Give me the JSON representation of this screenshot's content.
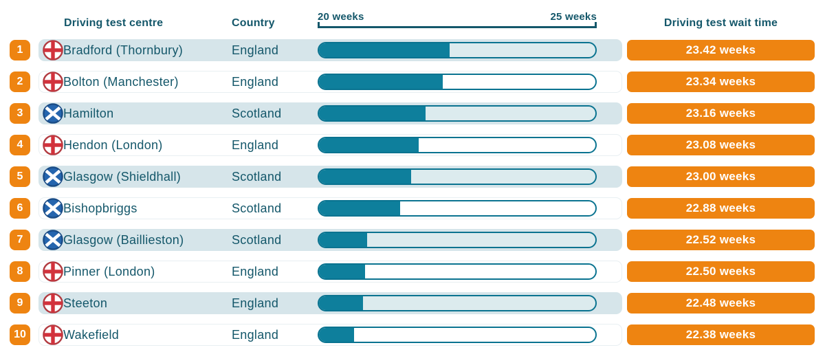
{
  "headers": {
    "centre": "Driving test centre",
    "country": "Country",
    "wait_time": "Driving test wait time"
  },
  "axis": {
    "min_label": "20 weeks",
    "max_label": "25 weeks"
  },
  "colors": {
    "accent_orange": "#ee8411",
    "bar_teal": "#0e7f9c",
    "bar_border_teal": "#0a7390",
    "row_highlight": "#d6e5ea",
    "track_light": "#dcebee",
    "text_dark_teal": "#14576a",
    "england_red": "#d2323c",
    "scotland_blue": "#2565ae"
  },
  "rows": [
    {
      "rank": "1",
      "flag": "england",
      "centre": "Bradford (Thornbury)",
      "country": "England",
      "wait_weeks": 23.42,
      "wait_label": "23.42 weeks"
    },
    {
      "rank": "2",
      "flag": "england",
      "centre": "Bolton (Manchester)",
      "country": "England",
      "wait_weeks": 23.34,
      "wait_label": "23.34 weeks"
    },
    {
      "rank": "3",
      "flag": "scotland",
      "centre": "Hamilton",
      "country": "Scotland",
      "wait_weeks": 23.16,
      "wait_label": "23.16 weeks"
    },
    {
      "rank": "4",
      "flag": "england",
      "centre": "Hendon (London)",
      "country": "England",
      "wait_weeks": 23.08,
      "wait_label": "23.08 weeks"
    },
    {
      "rank": "5",
      "flag": "scotland",
      "centre": "Glasgow (Shieldhall)",
      "country": "Scotland",
      "wait_weeks": 23.0,
      "wait_label": "23.00 weeks"
    },
    {
      "rank": "6",
      "flag": "scotland",
      "centre": "Bishopbriggs",
      "country": "Scotland",
      "wait_weeks": 22.88,
      "wait_label": "22.88 weeks"
    },
    {
      "rank": "7",
      "flag": "scotland",
      "centre": "Glasgow (Baillieston)",
      "country": "Scotland",
      "wait_weeks": 22.52,
      "wait_label": "22.52 weeks"
    },
    {
      "rank": "8",
      "flag": "england",
      "centre": "Pinner (London)",
      "country": "England",
      "wait_weeks": 22.5,
      "wait_label": "22.50 weeks"
    },
    {
      "rank": "9",
      "flag": "england",
      "centre": "Steeton",
      "country": "England",
      "wait_weeks": 22.48,
      "wait_label": "22.48 weeks"
    },
    {
      "rank": "10",
      "flag": "england",
      "centre": "Wakefield",
      "country": "England",
      "wait_weeks": 22.38,
      "wait_label": "22.38 weeks"
    }
  ],
  "chart_data": {
    "type": "bar",
    "orientation": "horizontal",
    "title": "Driving test wait time",
    "categories": [
      "Bradford (Thornbury)",
      "Bolton (Manchester)",
      "Hamilton",
      "Hendon (London)",
      "Glasgow (Shieldhall)",
      "Bishopbriggs",
      "Glasgow (Baillieston)",
      "Pinner (London)",
      "Steeton",
      "Wakefield"
    ],
    "countries": [
      "England",
      "England",
      "Scotland",
      "England",
      "Scotland",
      "Scotland",
      "Scotland",
      "England",
      "England",
      "England"
    ],
    "ranks": [
      1,
      2,
      3,
      4,
      5,
      6,
      7,
      8,
      9,
      10
    ],
    "series": [
      {
        "name": "Driving test wait time (weeks)",
        "values": [
          23.42,
          23.34,
          23.16,
          23.08,
          23.0,
          22.88,
          22.52,
          22.5,
          22.48,
          22.38
        ]
      }
    ],
    "value_labels": [
      "23.42 weeks",
      "23.34 weeks",
      "23.16 weeks",
      "23.08 weeks",
      "23.00 weeks",
      "22.88 weeks",
      "22.52 weeks",
      "22.50 weeks",
      "22.48 weeks",
      "22.38 weeks"
    ],
    "xlabel": "weeks",
    "x_axis_tick_labels": [
      "20 weeks",
      "25 weeks"
    ],
    "x_axis_range": [
      20,
      25
    ],
    "grid": false,
    "legend": false
  }
}
